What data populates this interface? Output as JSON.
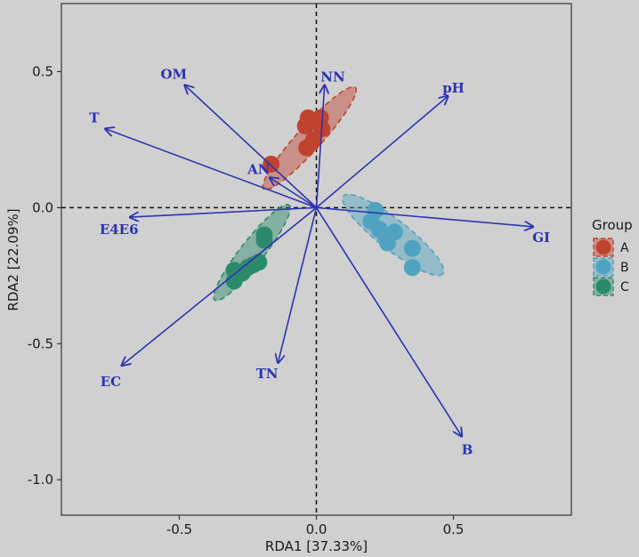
{
  "chart_data": {
    "type": "scatter",
    "xlabel": "RDA1 [37.33%]",
    "ylabel": "RDA2 [22.09%]",
    "xlim": [
      -0.93,
      0.93
    ],
    "ylim": [
      -1.13,
      0.75
    ],
    "x_ticks": [
      -0.5,
      0.0,
      0.5
    ],
    "x_tick_labels": [
      "-0.5",
      "0.0",
      "0.5"
    ],
    "y_ticks": [
      -1.0,
      -0.5,
      0.0,
      0.5
    ],
    "y_tick_labels": [
      "-1.0",
      "-0.5",
      "0.0",
      "0.5"
    ],
    "grid": false,
    "reference_lines": {
      "x": 0,
      "y": 0,
      "style": "dashed"
    },
    "legend": {
      "title": "Group",
      "placement": "right"
    },
    "colors": {
      "A": "#c0432e",
      "B": "#4fa3c0",
      "C": "#2b8a6c",
      "arrow": "#2c33b0"
    },
    "series": [
      {
        "name": "A",
        "points": [
          [
            -0.165,
            0.16
          ],
          [
            -0.04,
            0.3
          ],
          [
            -0.03,
            0.33
          ],
          [
            -0.01,
            0.25
          ],
          [
            0.01,
            0.32
          ],
          [
            0.02,
            0.29
          ],
          [
            -0.035,
            0.22
          ],
          [
            0.015,
            0.33
          ]
        ]
      },
      {
        "name": "B",
        "points": [
          [
            0.215,
            -0.01
          ],
          [
            0.2,
            -0.05
          ],
          [
            0.23,
            -0.08
          ],
          [
            0.26,
            -0.13
          ],
          [
            0.285,
            -0.09
          ],
          [
            0.35,
            -0.15
          ],
          [
            0.35,
            -0.22
          ],
          [
            0.25,
            -0.1
          ]
        ]
      },
      {
        "name": "C",
        "points": [
          [
            -0.3,
            -0.23
          ],
          [
            -0.3,
            -0.27
          ],
          [
            -0.25,
            -0.22
          ],
          [
            -0.21,
            -0.2
          ],
          [
            -0.19,
            -0.12
          ],
          [
            -0.19,
            -0.1
          ],
          [
            -0.23,
            -0.21
          ],
          [
            -0.27,
            -0.24
          ]
        ]
      }
    ],
    "ellipses": [
      {
        "group": "A",
        "cx": -0.025,
        "cy": 0.255,
        "rx": 0.25,
        "ry": 0.045,
        "angle_deg": 48
      },
      {
        "group": "B",
        "cx": 0.28,
        "cy": -0.1,
        "rx": 0.23,
        "ry": 0.055,
        "angle_deg": -38
      },
      {
        "group": "C",
        "cx": -0.235,
        "cy": -0.165,
        "rx": 0.22,
        "ry": 0.043,
        "angle_deg": 52
      }
    ],
    "arrows": [
      {
        "label": "NN",
        "x": 0.03,
        "y": 0.45
      },
      {
        "label": "pH",
        "x": 0.48,
        "y": 0.41
      },
      {
        "label": "OM",
        "x": -0.48,
        "y": 0.45
      },
      {
        "label": "T",
        "x": -0.77,
        "y": 0.29
      },
      {
        "label": "AN",
        "x": -0.17,
        "y": 0.11
      },
      {
        "label": "E4E6",
        "x": -0.68,
        "y": -0.035
      },
      {
        "label": "GI",
        "x": 0.79,
        "y": -0.07
      },
      {
        "label": "EC",
        "x": -0.71,
        "y": -0.58
      },
      {
        "label": "TN",
        "x": -0.14,
        "y": -0.57
      },
      {
        "label": "B",
        "x": 0.53,
        "y": -0.84
      }
    ],
    "arrow_label_positions": {
      "NN": [
        0.06,
        0.48
      ],
      "pH": [
        0.5,
        0.44
      ],
      "OM": [
        -0.52,
        0.49
      ],
      "T": [
        -0.81,
        0.33
      ],
      "AN": [
        -0.21,
        0.14
      ],
      "E4E6": [
        -0.72,
        -0.08
      ],
      "GI": [
        0.82,
        -0.11
      ],
      "EC": [
        -0.75,
        -0.64
      ],
      "TN": [
        -0.18,
        -0.61
      ],
      "B": [
        0.55,
        -0.89
      ]
    }
  }
}
